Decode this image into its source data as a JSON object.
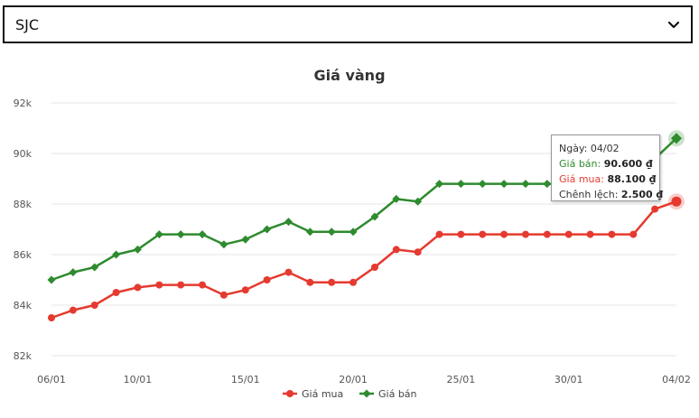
{
  "selector": {
    "value": "SJC",
    "icon": "chevron-down-icon"
  },
  "colors": {
    "buy": "#e53a2f",
    "sell": "#2e8b2e",
    "grid": "#e6e6e6"
  },
  "chart_data": {
    "type": "line",
    "title": "Giá vàng",
    "xlabel": "",
    "ylabel": "",
    "x": [
      "06/01",
      "07/01",
      "08/01",
      "09/01",
      "10/01",
      "11/01",
      "12/01",
      "13/01",
      "14/01",
      "15/01",
      "16/01",
      "17/01",
      "18/01",
      "19/01",
      "20/01",
      "21/01",
      "22/01",
      "23/01",
      "24/01",
      "25/01",
      "26/01",
      "27/01",
      "28/01",
      "29/01",
      "30/01",
      "31/01",
      "01/02",
      "02/02",
      "03/02",
      "04/02"
    ],
    "x_tick_labels": [
      "06/01",
      "10/01",
      "15/01",
      "20/01",
      "25/01",
      "30/01",
      "04/02"
    ],
    "y_tick_labels": [
      "82k",
      "84k",
      "86k",
      "88k",
      "90k",
      "92k"
    ],
    "ylim": [
      82000,
      92000
    ],
    "grid": true,
    "legend_position": "bottom",
    "series": [
      {
        "name": "Giá mua",
        "marker": "circle",
        "values": [
          83500,
          83800,
          84000,
          84500,
          84700,
          84800,
          84800,
          84800,
          84400,
          84600,
          85000,
          85300,
          84900,
          84900,
          84900,
          85500,
          86200,
          86100,
          86800,
          86800,
          86800,
          86800,
          86800,
          86800,
          86800,
          86800,
          86800,
          86800,
          87800,
          88100
        ]
      },
      {
        "name": "Giá bán",
        "marker": "diamond",
        "values": [
          85000,
          85300,
          85500,
          86000,
          86200,
          86800,
          86800,
          86800,
          86400,
          86600,
          87000,
          87300,
          86900,
          86900,
          86900,
          87500,
          88200,
          88100,
          88800,
          88800,
          88800,
          88800,
          88800,
          88800,
          88800,
          88800,
          88800,
          88800,
          89800,
          90600
        ]
      }
    ]
  },
  "tooltip": {
    "date_label": "Ngày: 04/02",
    "sell_label": "Giá bán: ",
    "sell_value": "90.600 ₫",
    "buy_label": "Giá mua: ",
    "buy_value": "88.100 ₫",
    "diff_label": "Chênh lệch: ",
    "diff_value": "2.500 ₫"
  }
}
